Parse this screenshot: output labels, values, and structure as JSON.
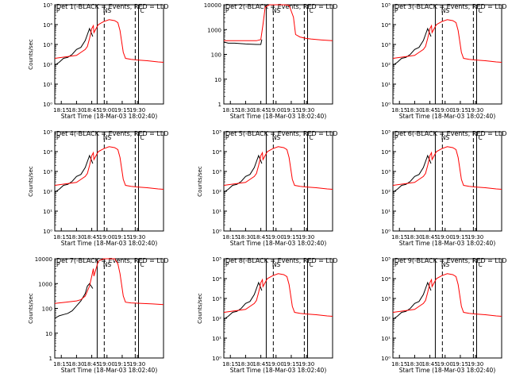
{
  "chart_data": [
    {
      "type": "line",
      "title": "Det 1(-BLACK = Events, RED = LLD",
      "ylabel": "Counts/sec",
      "xlabel": "Start Time (18-Mar-03 18:02:40)",
      "xtick_labels": [
        "18:15",
        "18:30",
        "18:45",
        "19:00",
        "19:15",
        "19:30"
      ],
      "ytick_labels": [
        "10⁰",
        "10¹",
        "10²",
        "10³",
        "10⁴",
        "10⁵"
      ],
      "ylim": [
        0,
        5
      ],
      "markers": [
        "P",
        "N",
        "S",
        "C"
      ],
      "series": [
        {
          "color": "#000000",
          "x": [
            0,
            0.04,
            0.08,
            0.12,
            0.16,
            0.2,
            0.24,
            0.28,
            0.3,
            0.32,
            0.35
          ],
          "y": [
            1.95,
            2.1,
            2.3,
            2.35,
            2.5,
            2.75,
            2.85,
            3.2,
            3.5,
            3.8,
            3.4
          ]
        },
        {
          "color": "#ff0000",
          "x": [
            0,
            0.2,
            0.24,
            0.28,
            0.3,
            0.32,
            0.34,
            0.355,
            0.36,
            0.4,
            0.45,
            0.5,
            0.55,
            0.58,
            0.6,
            0.63,
            0.65,
            0.7,
            0.75,
            0.8,
            0.85,
            0.9,
            0.95,
            1.0
          ],
          "y": [
            2.3,
            2.45,
            2.6,
            2.75,
            2.9,
            3.3,
            3.8,
            3.95,
            3.6,
            4.0,
            4.15,
            4.25,
            4.2,
            4.1,
            3.7,
            2.6,
            2.3,
            2.25,
            2.22,
            2.2,
            2.18,
            2.15,
            2.12,
            2.1
          ]
        }
      ]
    },
    {
      "type": "line",
      "title": "Det 2(-BLACK = Events, RED = LLD",
      "ylabel": "",
      "xlabel": "Start Time (18-Mar-03 18:02:40)",
      "xtick_labels": [
        "18:15",
        "18:30",
        "18:45",
        "19:00",
        "19:15",
        "19:30"
      ],
      "ytick_labels": [
        "1",
        "10",
        "100",
        "1000",
        "10000"
      ],
      "ylim": [
        0,
        4
      ],
      "markers": [
        "P",
        "N",
        "S",
        "C"
      ],
      "series": [
        {
          "color": "#000000",
          "x": [
            0,
            0.04,
            0.1,
            0.2,
            0.3,
            0.34,
            0.35
          ],
          "y": [
            2.5,
            2.45,
            2.45,
            2.42,
            2.4,
            2.4,
            2.6
          ]
        },
        {
          "color": "#ff0000",
          "x": [
            0,
            0.1,
            0.2,
            0.3,
            0.34,
            0.36,
            0.38,
            0.4,
            0.42,
            0.45,
            0.5,
            0.55,
            0.6,
            0.64,
            0.66,
            0.7,
            0.75,
            0.8,
            0.85,
            0.9,
            1.0
          ],
          "y": [
            2.55,
            2.55,
            2.55,
            2.55,
            2.6,
            3.2,
            3.9,
            3.95,
            4.0,
            4.0,
            4.0,
            4.0,
            3.98,
            3.5,
            2.8,
            2.7,
            2.65,
            2.62,
            2.6,
            2.58,
            2.55
          ]
        }
      ]
    },
    {
      "type": "line",
      "title": "Det 3(-BLACK = Events, RED = LLD",
      "ylabel": "",
      "xlabel": "Start Time (18-Mar-03 18:02:40)",
      "xtick_labels": [
        "18:15",
        "18:30",
        "18:45",
        "19:00",
        "19:15",
        "19:30"
      ],
      "ytick_labels": [
        "10⁰",
        "10¹",
        "10²",
        "10³",
        "10⁴",
        "10⁵"
      ],
      "ylim": [
        0,
        5
      ],
      "markers": [
        "P",
        "N",
        "S",
        "C"
      ],
      "series": [
        {
          "color": "#000000",
          "x": [
            0,
            0.04,
            0.08,
            0.12,
            0.16,
            0.2,
            0.24,
            0.28,
            0.3,
            0.32,
            0.35
          ],
          "y": [
            1.95,
            2.1,
            2.3,
            2.35,
            2.5,
            2.75,
            2.85,
            3.2,
            3.5,
            3.8,
            3.4
          ]
        },
        {
          "color": "#ff0000",
          "x": [
            0,
            0.2,
            0.24,
            0.28,
            0.3,
            0.32,
            0.34,
            0.355,
            0.36,
            0.4,
            0.45,
            0.5,
            0.55,
            0.58,
            0.6,
            0.63,
            0.65,
            0.7,
            0.75,
            0.8,
            0.85,
            0.9,
            0.95,
            1.0
          ],
          "y": [
            2.3,
            2.45,
            2.6,
            2.75,
            2.9,
            3.3,
            3.8,
            3.95,
            3.6,
            4.0,
            4.15,
            4.25,
            4.2,
            4.1,
            3.7,
            2.6,
            2.3,
            2.25,
            2.22,
            2.2,
            2.18,
            2.15,
            2.12,
            2.1
          ]
        }
      ]
    },
    {
      "type": "line",
      "title": "Det 4(-BLACK = Events, RED = LLD",
      "ylabel": "Counts/sec",
      "xlabel": "Start Time (18-Mar-03 18:02:40)",
      "xtick_labels": [
        "18:15",
        "18:30",
        "18:45",
        "19:00",
        "19:15",
        "19:30"
      ],
      "ytick_labels": [
        "10⁰",
        "10¹",
        "10²",
        "10³",
        "10⁴",
        "10⁵"
      ],
      "ylim": [
        0,
        5
      ],
      "markers": [
        "P",
        "N",
        "S",
        "C"
      ],
      "series": [
        {
          "color": "#000000",
          "x": [
            0,
            0.04,
            0.08,
            0.12,
            0.16,
            0.2,
            0.24,
            0.28,
            0.3,
            0.32,
            0.35
          ],
          "y": [
            1.95,
            2.1,
            2.3,
            2.35,
            2.5,
            2.75,
            2.85,
            3.2,
            3.5,
            3.8,
            3.4
          ]
        },
        {
          "color": "#ff0000",
          "x": [
            0,
            0.2,
            0.24,
            0.28,
            0.3,
            0.32,
            0.34,
            0.355,
            0.36,
            0.4,
            0.45,
            0.5,
            0.55,
            0.58,
            0.6,
            0.63,
            0.65,
            0.7,
            0.75,
            0.8,
            0.85,
            0.9,
            0.95,
            1.0
          ],
          "y": [
            2.3,
            2.45,
            2.6,
            2.75,
            2.9,
            3.3,
            3.8,
            3.95,
            3.6,
            4.0,
            4.15,
            4.25,
            4.2,
            4.1,
            3.7,
            2.6,
            2.3,
            2.25,
            2.22,
            2.2,
            2.18,
            2.15,
            2.12,
            2.1
          ]
        }
      ]
    },
    {
      "type": "line",
      "title": "Det 5(-BLACK = Events, RED = LLD",
      "ylabel": "Counts/sec",
      "xlabel": "Start Time (18-Mar-03 18:02:40)",
      "xtick_labels": [
        "18:15",
        "18:30",
        "18:45",
        "19:00",
        "19:15",
        "19:30"
      ],
      "ytick_labels": [
        "10⁰",
        "10¹",
        "10²",
        "10³",
        "10⁴",
        "10⁵"
      ],
      "ylim": [
        0,
        5
      ],
      "markers": [
        "P",
        "N",
        "S",
        "C"
      ],
      "series": [
        {
          "color": "#000000",
          "x": [
            0,
            0.04,
            0.08,
            0.12,
            0.16,
            0.2,
            0.24,
            0.28,
            0.3,
            0.32,
            0.35
          ],
          "y": [
            1.95,
            2.1,
            2.3,
            2.35,
            2.5,
            2.75,
            2.85,
            3.2,
            3.5,
            3.8,
            3.4
          ]
        },
        {
          "color": "#ff0000",
          "x": [
            0,
            0.2,
            0.24,
            0.28,
            0.3,
            0.32,
            0.34,
            0.355,
            0.36,
            0.4,
            0.45,
            0.5,
            0.55,
            0.58,
            0.6,
            0.63,
            0.65,
            0.7,
            0.75,
            0.8,
            0.85,
            0.9,
            0.95,
            1.0
          ],
          "y": [
            2.3,
            2.45,
            2.6,
            2.75,
            2.9,
            3.3,
            3.8,
            3.95,
            3.6,
            4.0,
            4.15,
            4.25,
            4.2,
            4.1,
            3.7,
            2.6,
            2.3,
            2.25,
            2.22,
            2.2,
            2.18,
            2.15,
            2.12,
            2.1
          ]
        }
      ]
    },
    {
      "type": "line",
      "title": "Det 6(-BLACK = Events, RED = LLD",
      "ylabel": "",
      "xlabel": "Start Time (18-Mar-03 18:02:40)",
      "xtick_labels": [
        "18:15",
        "18:30",
        "18:45",
        "19:00",
        "19:15",
        "19:30"
      ],
      "ytick_labels": [
        "10⁰",
        "10¹",
        "10²",
        "10³",
        "10⁴",
        "10⁵"
      ],
      "ylim": [
        0,
        5
      ],
      "markers": [
        "P",
        "N",
        "S",
        "C"
      ],
      "series": [
        {
          "color": "#000000",
          "x": [
            0,
            0.04,
            0.08,
            0.12,
            0.16,
            0.2,
            0.24,
            0.28,
            0.3,
            0.32,
            0.35
          ],
          "y": [
            1.95,
            2.1,
            2.3,
            2.35,
            2.5,
            2.75,
            2.85,
            3.2,
            3.5,
            3.8,
            3.4
          ]
        },
        {
          "color": "#ff0000",
          "x": [
            0,
            0.2,
            0.24,
            0.28,
            0.3,
            0.32,
            0.34,
            0.355,
            0.36,
            0.4,
            0.45,
            0.5,
            0.55,
            0.58,
            0.6,
            0.63,
            0.65,
            0.7,
            0.75,
            0.8,
            0.85,
            0.9,
            0.95,
            1.0
          ],
          "y": [
            2.3,
            2.45,
            2.6,
            2.75,
            2.9,
            3.3,
            3.8,
            3.95,
            3.6,
            4.0,
            4.15,
            4.25,
            4.2,
            4.1,
            3.7,
            2.6,
            2.3,
            2.25,
            2.22,
            2.2,
            2.18,
            2.15,
            2.12,
            2.1
          ]
        }
      ]
    },
    {
      "type": "line",
      "title": "Det 7(-BLACK = Events, RED = LLD",
      "ylabel": "Counts/sec",
      "xlabel": "Start Time (18-Mar-03 18:02:40)",
      "xtick_labels": [
        "18:15",
        "18:30",
        "18:45",
        "19:00",
        "19:15",
        "19:30"
      ],
      "ytick_labels": [
        "1",
        "10",
        "100",
        "1000",
        "10000"
      ],
      "ylim": [
        0,
        4
      ],
      "markers": [
        "P",
        "N",
        "S",
        "C"
      ],
      "series": [
        {
          "color": "#000000",
          "x": [
            0,
            0.04,
            0.08,
            0.12,
            0.16,
            0.2,
            0.24,
            0.28,
            0.3,
            0.32,
            0.35
          ],
          "y": [
            1.6,
            1.7,
            1.75,
            1.8,
            1.9,
            2.1,
            2.3,
            2.6,
            2.9,
            3.0,
            2.8
          ]
        },
        {
          "color": "#ff0000",
          "x": [
            0,
            0.1,
            0.2,
            0.24,
            0.28,
            0.3,
            0.32,
            0.34,
            0.355,
            0.36,
            0.4,
            0.45,
            0.5,
            0.55,
            0.58,
            0.6,
            0.63,
            0.65,
            0.7,
            0.8,
            0.9,
            1.0
          ],
          "y": [
            2.2,
            2.25,
            2.3,
            2.35,
            2.5,
            2.7,
            2.9,
            3.3,
            3.6,
            3.3,
            3.9,
            4.05,
            4.1,
            4.0,
            3.8,
            3.4,
            2.5,
            2.25,
            2.22,
            2.2,
            2.18,
            2.15
          ]
        }
      ]
    },
    {
      "type": "line",
      "title": "Det 8(-BLACK = Events, RED = LLD",
      "ylabel": "Counts/sec",
      "xlabel": "Start Time (18-Mar-03 18:02:40)",
      "xtick_labels": [
        "18:15",
        "18:30",
        "18:45",
        "19:00",
        "19:15",
        "19:30"
      ],
      "ytick_labels": [
        "10⁰",
        "10¹",
        "10²",
        "10³",
        "10⁴",
        "10⁵"
      ],
      "ylim": [
        0,
        5
      ],
      "markers": [
        "P",
        "N",
        "S",
        "C"
      ],
      "series": [
        {
          "color": "#000000",
          "x": [
            0,
            0.04,
            0.08,
            0.12,
            0.16,
            0.2,
            0.24,
            0.28,
            0.3,
            0.32,
            0.35
          ],
          "y": [
            1.95,
            2.1,
            2.3,
            2.35,
            2.5,
            2.75,
            2.85,
            3.2,
            3.5,
            3.8,
            3.4
          ]
        },
        {
          "color": "#ff0000",
          "x": [
            0,
            0.2,
            0.24,
            0.28,
            0.3,
            0.32,
            0.34,
            0.355,
            0.36,
            0.4,
            0.45,
            0.5,
            0.55,
            0.58,
            0.6,
            0.63,
            0.65,
            0.7,
            0.75,
            0.8,
            0.85,
            0.9,
            0.95,
            1.0
          ],
          "y": [
            2.3,
            2.45,
            2.6,
            2.75,
            2.9,
            3.3,
            3.8,
            3.95,
            3.6,
            4.0,
            4.15,
            4.25,
            4.2,
            4.1,
            3.7,
            2.6,
            2.3,
            2.25,
            2.22,
            2.2,
            2.18,
            2.15,
            2.12,
            2.1
          ]
        }
      ]
    },
    {
      "type": "line",
      "title": "Det 9(-BLACK = Events, RED = LLD",
      "ylabel": "",
      "xlabel": "Start Time (18-Mar-03 18:02:40)",
      "xtick_labels": [
        "18:15",
        "18:30",
        "18:45",
        "19:00",
        "19:15",
        "19:30"
      ],
      "ytick_labels": [
        "10⁰",
        "10¹",
        "10²",
        "10³",
        "10⁴",
        "10⁵"
      ],
      "ylim": [
        0,
        5
      ],
      "markers": [
        "P",
        "N",
        "S",
        "C"
      ],
      "series": [
        {
          "color": "#000000",
          "x": [
            0,
            0.04,
            0.08,
            0.12,
            0.16,
            0.2,
            0.24,
            0.28,
            0.3,
            0.32,
            0.35
          ],
          "y": [
            1.95,
            2.1,
            2.3,
            2.35,
            2.5,
            2.75,
            2.85,
            3.2,
            3.5,
            3.8,
            3.4
          ]
        },
        {
          "color": "#ff0000",
          "x": [
            0,
            0.2,
            0.24,
            0.28,
            0.3,
            0.32,
            0.34,
            0.355,
            0.36,
            0.4,
            0.45,
            0.5,
            0.55,
            0.58,
            0.6,
            0.63,
            0.65,
            0.7,
            0.75,
            0.8,
            0.85,
            0.9,
            0.95,
            1.0
          ],
          "y": [
            2.3,
            2.45,
            2.6,
            2.75,
            2.9,
            3.3,
            3.8,
            3.95,
            3.6,
            4.0,
            4.15,
            4.25,
            4.2,
            4.1,
            3.7,
            2.6,
            2.3,
            2.25,
            2.22,
            2.2,
            2.18,
            2.15,
            2.12,
            2.1
          ]
        }
      ]
    }
  ]
}
